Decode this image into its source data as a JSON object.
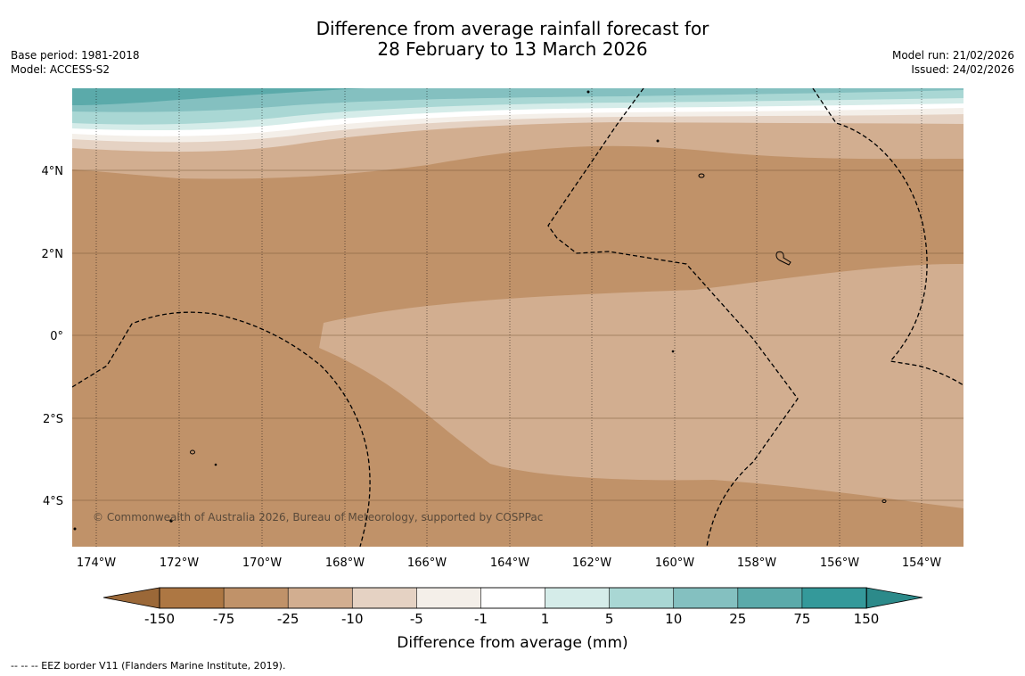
{
  "title": {
    "line1": "Difference from average rainfall forecast for",
    "line2": "28 February to 13 March 2026"
  },
  "meta_left": {
    "base_period": "Base period: 1981-2018",
    "model": "Model: ACCESS-S2"
  },
  "meta_right": {
    "model_run": "Model run: 21/02/2026",
    "issued": "Issued: 24/02/2026"
  },
  "map": {
    "lon_labels": [
      "174°W",
      "172°W",
      "170°W",
      "168°W",
      "166°W",
      "164°W",
      "162°W",
      "160°W",
      "158°W",
      "156°W",
      "154°W"
    ],
    "lat_labels": [
      "4°N",
      "2°N",
      "0°",
      "2°S",
      "4°S"
    ],
    "copyright": "© Commonwealth of Australia 2026, Bureau of Meteorology, supported by COSPPac"
  },
  "colorbar": {
    "ticks": [
      "-150",
      "-75",
      "-25",
      "-10",
      "-5",
      "-1",
      "1",
      "5",
      "10",
      "25",
      "75",
      "150"
    ],
    "colors": [
      "#ad7743",
      "#c09269",
      "#d2ae90",
      "#e5d2c3",
      "#f4efe9",
      "#ffffff",
      "#d5ece9",
      "#a9d7d4",
      "#84c0c0",
      "#5baaaa",
      "#34999a"
    ],
    "extend_low_color": "#9b6838",
    "extend_high_color": "#2c8a8a",
    "label": "Difference from average (mm)"
  },
  "footer": {
    "text": "--  --  -- EEZ border V11 (Flanders Marine Institute, 2019)."
  }
}
